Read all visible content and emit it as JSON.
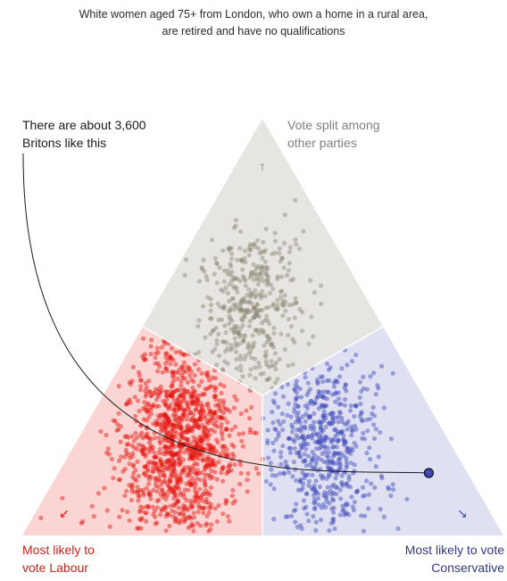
{
  "subtitle": {
    "line1": "White women aged 75+ from London, who own a home in a rural area,",
    "line2": "are retired and have no qualifications"
  },
  "callout": {
    "line1": "There are about 3,600",
    "line2": "Britons like this"
  },
  "corners": {
    "top": {
      "line1": "Vote split among",
      "line2": "other parties",
      "arrow": "↑"
    },
    "left": {
      "line1": "Most likely to",
      "line2": "vote Labour",
      "arrow": "↙"
    },
    "right": {
      "line1": "Most likely to vote",
      "line2": "Conservative",
      "arrow": "↘"
    }
  },
  "colors": {
    "labour": "#e3120b",
    "labour_region": "#fbd5d3",
    "conservative": "#3f4ab8",
    "conservative_region": "#dfe0f2",
    "other": "#8c8674",
    "other_region": "#e6e5e1",
    "text": "#2b2b2b",
    "labour_text": "#d0211a",
    "conservative_text": "#34397e",
    "other_text": "#808080"
  },
  "chart_data": {
    "type": "scatter",
    "coordinate_system": "ternary",
    "axes": [
      "Labour",
      "Conservative",
      "Other"
    ],
    "highlight_point": {
      "labour": 0.08,
      "conservative": 0.77,
      "other": 0.15
    },
    "clusters": [
      {
        "name": "Labour",
        "count": 1300,
        "center": {
          "labour": 0.55,
          "conservative": 0.22,
          "other": 0.23
        },
        "spread": 0.085
      },
      {
        "name": "Conservative",
        "count": 650,
        "center": {
          "labour": 0.26,
          "conservative": 0.5,
          "other": 0.24
        },
        "spread": 0.08
      },
      {
        "name": "Other",
        "count": 420,
        "center": {
          "labour": 0.25,
          "conservative": 0.2,
          "other": 0.55
        },
        "spread": 0.07
      }
    ]
  }
}
